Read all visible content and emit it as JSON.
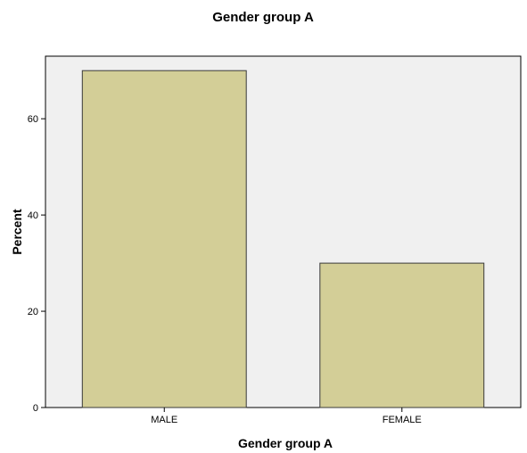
{
  "chart_data": {
    "type": "bar",
    "title": "Gender group A",
    "xlabel": "Gender group A",
    "ylabel": "Percent",
    "categories": [
      "MALE",
      "FEMALE"
    ],
    "values": [
      70,
      30
    ],
    "ylim": [
      0,
      73
    ],
    "yticks": [
      0,
      20,
      40,
      60
    ],
    "grid": false,
    "colors": {
      "bar_fill": "#d3ce97",
      "bar_stroke": "#3a3a3a",
      "plot_background": "#f0f0f0",
      "axis": "#000000"
    }
  }
}
